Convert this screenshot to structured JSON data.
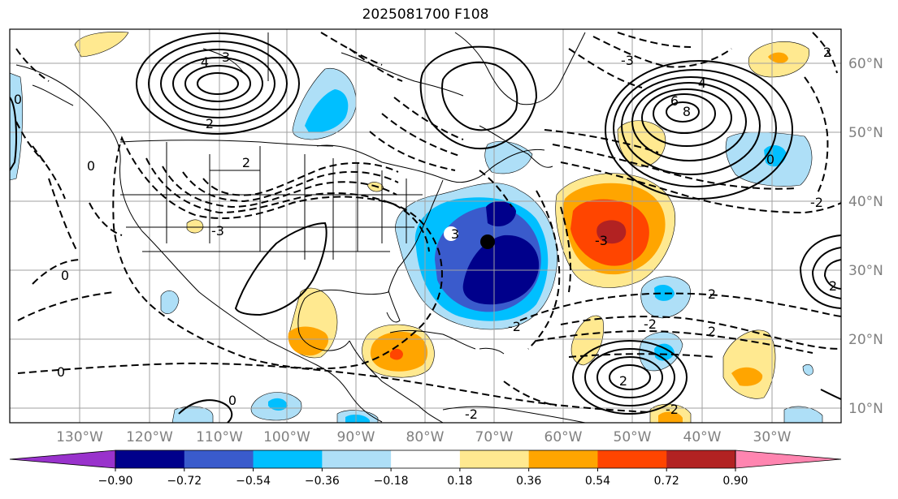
{
  "title": "2025081700 F108",
  "map": {
    "lat_ticks": [
      "60°N",
      "50°N",
      "40°N",
      "30°N",
      "20°N",
      "10°N"
    ],
    "lon_ticks": [
      "130°W",
      "120°W",
      "110°W",
      "100°W",
      "90°W",
      "80°W",
      "70°W",
      "60°W",
      "50°W",
      "40°W",
      "30°W"
    ],
    "contour_labels": [
      "4",
      "3",
      "2",
      "2",
      "0",
      "0",
      "0",
      "-3",
      "3",
      "-3",
      "-3",
      "4",
      "6",
      "8",
      "0",
      "2",
      "-2",
      "2",
      "2",
      "-2",
      "-2",
      "-2",
      "2",
      "2",
      "-2",
      "0",
      "0"
    ],
    "storm_marker": "black-dot"
  },
  "colorbar": {
    "ticks": [
      "−0.90",
      "−0.72",
      "−0.54",
      "−0.36",
      "−0.18",
      "0.18",
      "0.36",
      "0.54",
      "0.72",
      "0.90"
    ],
    "colors": [
      "#9932cc",
      "#00008b",
      "#3a5bcc",
      "#00bfff",
      "#aedff7",
      "#ffffff",
      "#ffe990",
      "#ffa500",
      "#ff4500",
      "#b22222",
      "#ff85b0"
    ]
  }
}
